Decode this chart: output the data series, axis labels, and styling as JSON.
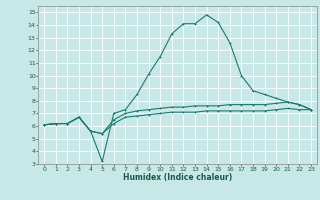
{
  "title": "",
  "xlabel": "Humidex (Indice chaleur)",
  "ylabel": "",
  "background_color": "#c8e8e8",
  "line_color": "#1a7a6a",
  "xlim": [
    -0.5,
    23.5
  ],
  "ylim": [
    3,
    15.5
  ],
  "yticks": [
    3,
    4,
    5,
    6,
    7,
    8,
    9,
    10,
    11,
    12,
    13,
    14,
    15
  ],
  "xticks": [
    0,
    1,
    2,
    3,
    4,
    5,
    6,
    7,
    8,
    9,
    10,
    11,
    12,
    13,
    14,
    15,
    16,
    17,
    18,
    19,
    20,
    21,
    22,
    23
  ],
  "line1_x": [
    0,
    1,
    2,
    3,
    4,
    5,
    6,
    7,
    8,
    9,
    10,
    11,
    12,
    13,
    14,
    15,
    16,
    17,
    18,
    19,
    20,
    21,
    22,
    23
  ],
  "line1_y": [
    6.1,
    6.2,
    6.2,
    6.7,
    5.6,
    3.2,
    7.0,
    7.3,
    8.5,
    10.1,
    11.5,
    13.3,
    14.1,
    14.1,
    14.8,
    14.2,
    12.6,
    10.0,
    8.8,
    8.5,
    8.2,
    7.9,
    7.7,
    7.3
  ],
  "line2_x": [
    0,
    1,
    2,
    3,
    4,
    5,
    6,
    7,
    8,
    9,
    10,
    11,
    12,
    13,
    14,
    15,
    16,
    17,
    18,
    19,
    20,
    21,
    22,
    23
  ],
  "line2_y": [
    6.1,
    6.2,
    6.2,
    6.7,
    5.6,
    5.4,
    6.5,
    7.0,
    7.2,
    7.3,
    7.4,
    7.5,
    7.5,
    7.6,
    7.6,
    7.6,
    7.7,
    7.7,
    7.7,
    7.7,
    7.8,
    7.9,
    7.7,
    7.3
  ],
  "line3_x": [
    0,
    1,
    2,
    3,
    4,
    5,
    6,
    7,
    8,
    9,
    10,
    11,
    12,
    13,
    14,
    15,
    16,
    17,
    18,
    19,
    20,
    21,
    22,
    23
  ],
  "line3_y": [
    6.1,
    6.2,
    6.2,
    6.7,
    5.6,
    5.4,
    6.2,
    6.7,
    6.8,
    6.9,
    7.0,
    7.1,
    7.1,
    7.1,
    7.2,
    7.2,
    7.2,
    7.2,
    7.2,
    7.2,
    7.3,
    7.4,
    7.3,
    7.3
  ]
}
